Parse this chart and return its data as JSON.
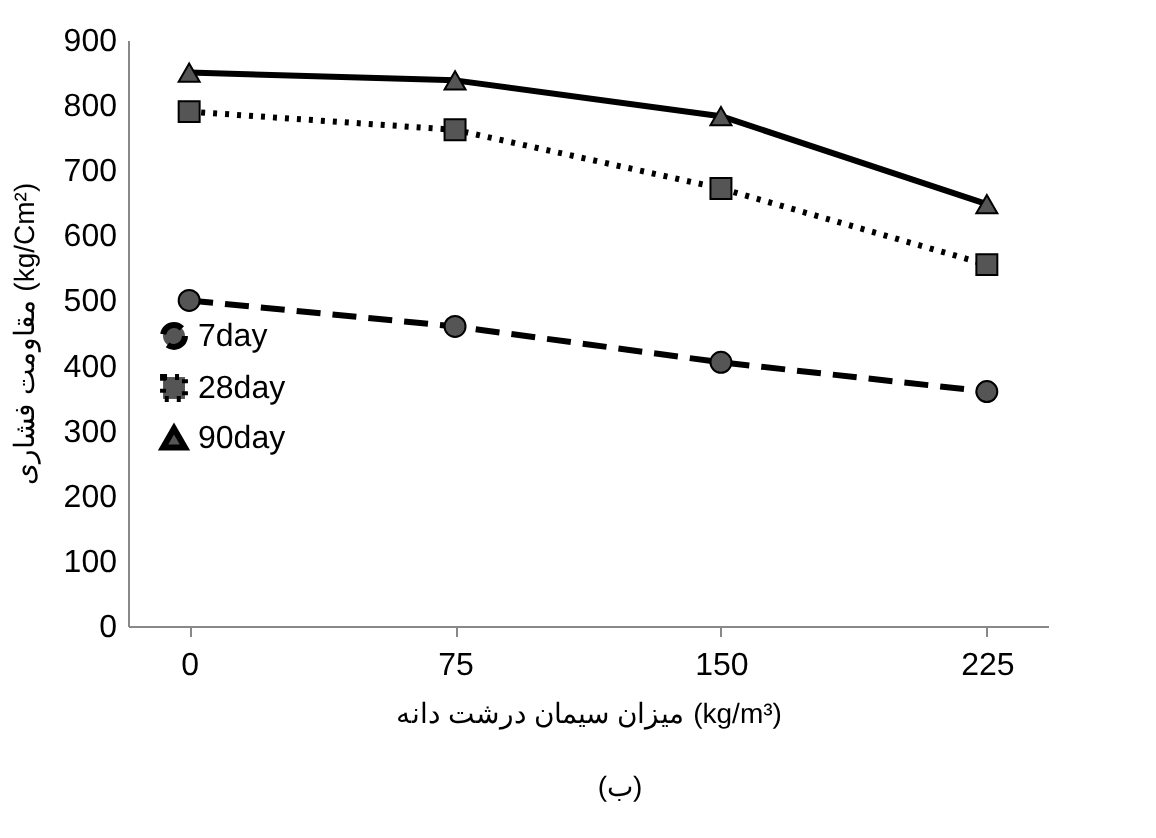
{
  "chart_data": {
    "type": "line",
    "xlabel": "میزان سیمان درشت دانه (kg/m³)",
    "ylabel": "مقاومت فشاری (kg/Cm²)",
    "categories": [
      "0",
      "75",
      "150",
      "225"
    ],
    "ylim": [
      0,
      900
    ],
    "yticks": [
      0,
      100,
      200,
      300,
      400,
      500,
      600,
      700,
      800,
      900
    ],
    "grid": false,
    "legend": "left",
    "annotations": [
      "(ب)"
    ],
    "series": [
      {
        "name": "7day",
        "color": "#000000",
        "marker": "circle",
        "line_style": "dashed",
        "values": [
          500,
          460,
          405,
          360
        ]
      },
      {
        "name": "28day",
        "color": "#000000",
        "marker": "square",
        "line_style": "dotted",
        "values": [
          790,
          762,
          672,
          555
        ]
      },
      {
        "name": "90day",
        "color": "#000000",
        "marker": "triangle",
        "line_style": "solid",
        "values": [
          850,
          838,
          783,
          648
        ]
      }
    ]
  }
}
